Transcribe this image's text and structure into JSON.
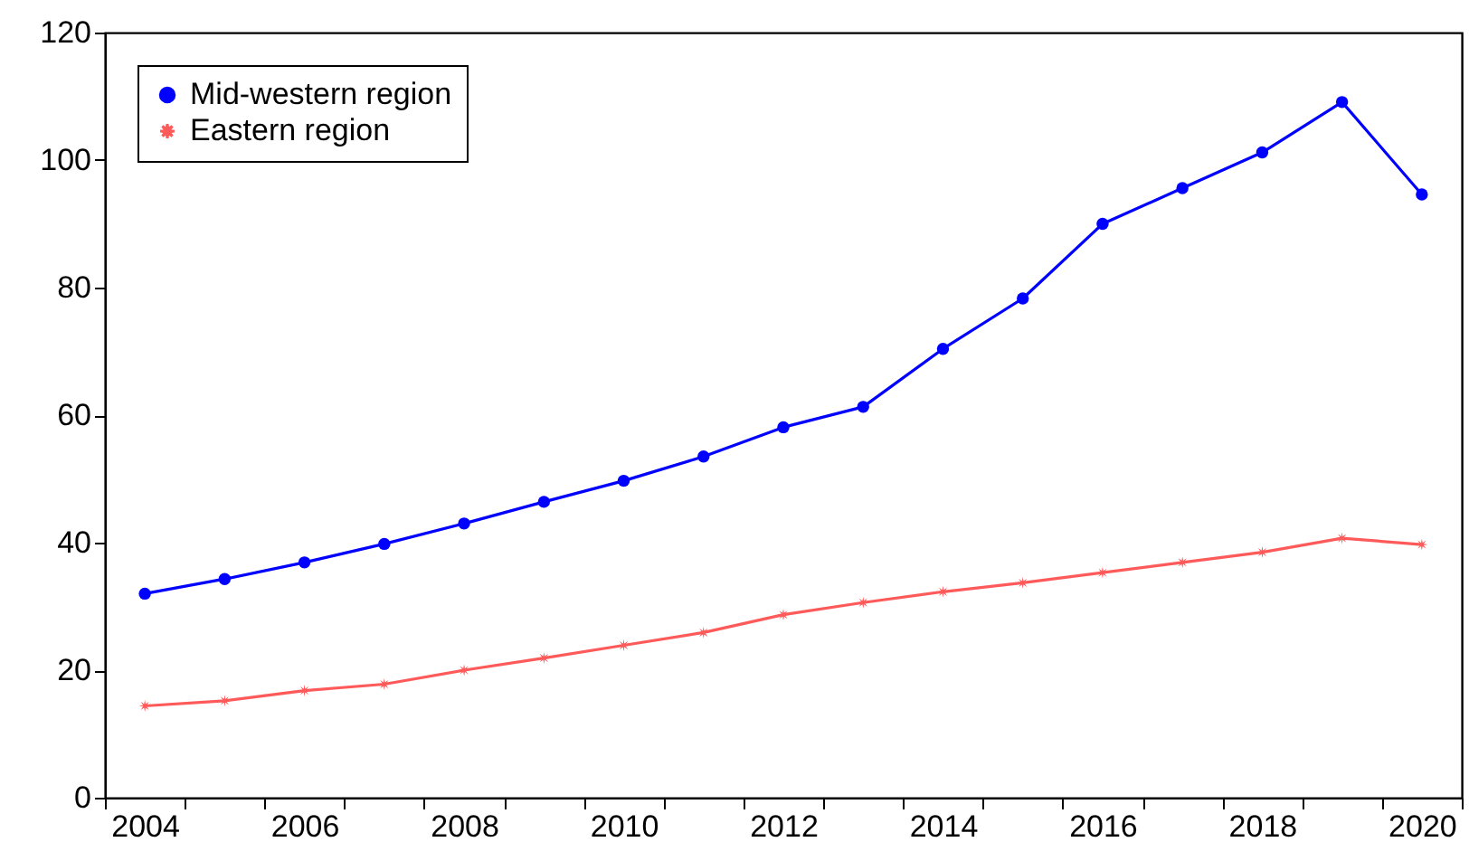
{
  "chart_data": {
    "type": "line",
    "categories": [
      "2004",
      null,
      "2006",
      null,
      "2008",
      null,
      "2010",
      null,
      "2012",
      null,
      "2014",
      null,
      "2016",
      null,
      "2018",
      null,
      "2020"
    ],
    "series": [
      {
        "name": "Mid-western region",
        "color": "#0000ff",
        "marker": "circle",
        "values": [
          32.0,
          34.3,
          36.9,
          39.8,
          43.0,
          46.4,
          49.7,
          53.5,
          58.1,
          61.3,
          70.4,
          78.3,
          90.0,
          95.6,
          101.2,
          109.1,
          94.6
        ]
      },
      {
        "name": "Eastern region",
        "color": "#ff5a5a",
        "marker": "star",
        "values": [
          14.4,
          15.2,
          16.8,
          17.8,
          20.0,
          21.9,
          23.9,
          25.9,
          28.7,
          30.6,
          32.3,
          33.7,
          35.3,
          36.9,
          38.5,
          40.7,
          39.7
        ]
      }
    ],
    "ylim": [
      0,
      120
    ],
    "yticks": [
      0,
      20,
      40,
      60,
      80,
      100,
      120
    ],
    "grid": false,
    "legend": "top left",
    "line_style": "solid"
  }
}
